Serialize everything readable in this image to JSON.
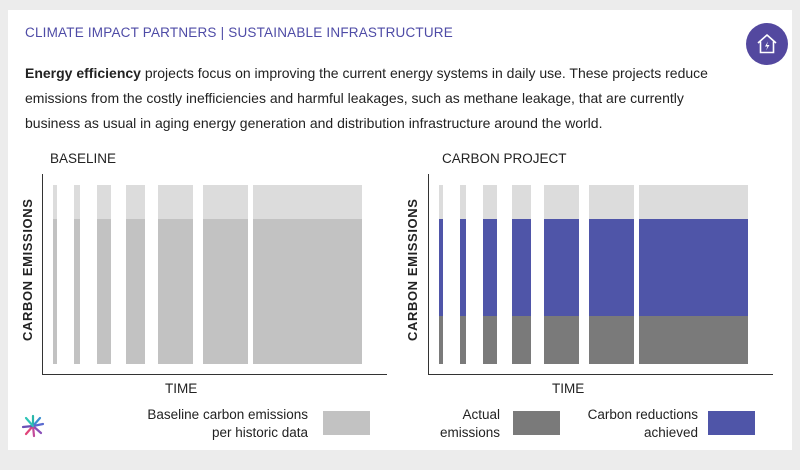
{
  "header": {
    "title": "CLIMATE IMPACT PARTNERS | SUSTAINABLE INFRASTRUCTURE"
  },
  "icons": {
    "badge": "house-lightning-icon",
    "logo": "starburst-logo-icon"
  },
  "intro": {
    "bold": "Energy efficiency",
    "text": " projects focus on improving the current energy systems in daily use. These projects reduce emissions from the costly inefficiencies and harmful leakages, such as methane leakage, that are currently business as usual in aging energy generation and distribution infrastructure around the world."
  },
  "baseline": {
    "title": "BASELINE",
    "ylabel": "CARBON EMISSIONS",
    "xlabel": "TIME"
  },
  "project": {
    "title": "CARBON PROJECT",
    "ylabel": "CARBON EMISSIONS",
    "xlabel": "TIME"
  },
  "legend": {
    "baseline": "Baseline carbon emissions per historic data",
    "actual": "Actual emissions",
    "reductions": "Carbon reductions achieved"
  },
  "colors": {
    "accent": "#53489f",
    "reduction": "#4f55a8",
    "actual": "#7a7a7a",
    "baseline": "#c2c2c2",
    "baseline_light": "#dcdcdc",
    "text": "#222222"
  }
}
